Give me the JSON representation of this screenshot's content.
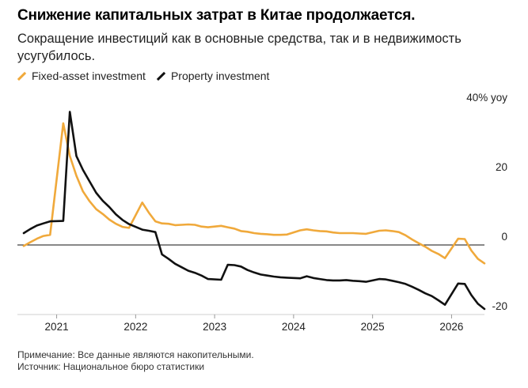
{
  "title": "Снижение капитальных затрат в Китае продолжается.",
  "subtitle": "Сокращение инвестиций как в основные средства, так и в недвижимость усугубилось.",
  "footer": {
    "note": "Примечание: Все данные являются накопительными.",
    "source": "Источник: Национальное бюро статистики"
  },
  "chart_data": {
    "type": "line",
    "title": "Снижение капитальных затрат в Китае продолжается.",
    "subtitle": "Сокращение инвестиций как в основные средства, так и в недвижимость усугубилось.",
    "ylabel": "",
    "y_unit_label": "40% yoy",
    "ylim": [
      -20,
      40
    ],
    "y_ticks": [
      40,
      20,
      0,
      -20
    ],
    "y_tick_labels": [
      "40% yoy",
      "20",
      "0",
      "-20"
    ],
    "x_ticks": [
      "2021",
      "2022",
      "2023",
      "2024",
      "2025",
      "2026"
    ],
    "grid": "horizontal zero line only",
    "legend": "top-left",
    "series": [
      {
        "name": "Fixed-asset investment",
        "color": "#f0a93b",
        "x": [
          "2020-08",
          "2020-09",
          "2020-10",
          "2020-11",
          "2020-12",
          "2021-02",
          "2021-03",
          "2021-04",
          "2021-05",
          "2021-06",
          "2021-07",
          "2021-08",
          "2021-09",
          "2021-10",
          "2021-11",
          "2021-12",
          "2022-02",
          "2022-03",
          "2022-04",
          "2022-05",
          "2022-06",
          "2022-07",
          "2022-08",
          "2022-09",
          "2022-10",
          "2022-11",
          "2022-12",
          "2023-02",
          "2023-03",
          "2023-04",
          "2023-05",
          "2023-06",
          "2023-07",
          "2023-08",
          "2023-09",
          "2023-10",
          "2023-11",
          "2023-12",
          "2024-02",
          "2024-03",
          "2024-04",
          "2024-05",
          "2024-06",
          "2024-07",
          "2024-08",
          "2024-09",
          "2024-10",
          "2024-11",
          "2024-12",
          "2025-02",
          "2025-03",
          "2025-04",
          "2025-05",
          "2025-06",
          "2025-07",
          "2025-08",
          "2025-09",
          "2025-10",
          "2025-11",
          "2025-12",
          "2026-02",
          "2026-03",
          "2026-04",
          "2026-05",
          "2026-06"
        ],
        "values": [
          -0.3,
          0.8,
          1.8,
          2.6,
          2.9,
          35.0,
          25.6,
          19.9,
          15.4,
          12.6,
          10.3,
          8.9,
          7.3,
          6.1,
          5.2,
          4.9,
          12.2,
          9.3,
          6.8,
          6.2,
          6.1,
          5.7,
          5.8,
          5.9,
          5.8,
          5.3,
          5.1,
          5.5,
          5.1,
          4.7,
          4.0,
          3.8,
          3.4,
          3.2,
          3.1,
          2.9,
          2.9,
          3.0,
          4.2,
          4.5,
          4.2,
          4.0,
          3.9,
          3.6,
          3.4,
          3.4,
          3.4,
          3.3,
          3.2,
          4.1,
          4.2,
          4.0,
          3.7,
          2.8,
          1.6,
          0.5,
          -0.5,
          -1.7,
          -2.6,
          -3.8,
          1.8,
          1.7,
          -1.6,
          -4.0,
          -5.3
        ]
      },
      {
        "name": "Property investment",
        "color": "#111111",
        "x": [
          "2020-08",
          "2020-09",
          "2020-10",
          "2020-11",
          "2020-12",
          "2021-02",
          "2021-03",
          "2021-04",
          "2021-05",
          "2021-06",
          "2021-07",
          "2021-08",
          "2021-09",
          "2021-10",
          "2021-11",
          "2021-12",
          "2022-02",
          "2022-03",
          "2022-04",
          "2022-05",
          "2022-06",
          "2022-07",
          "2022-08",
          "2022-09",
          "2022-10",
          "2022-11",
          "2022-12",
          "2023-02",
          "2023-03",
          "2023-04",
          "2023-05",
          "2023-06",
          "2023-07",
          "2023-08",
          "2023-09",
          "2023-10",
          "2023-11",
          "2023-12",
          "2024-02",
          "2024-03",
          "2024-04",
          "2024-05",
          "2024-06",
          "2024-07",
          "2024-08",
          "2024-09",
          "2024-10",
          "2024-11",
          "2024-12",
          "2025-02",
          "2025-03",
          "2025-04",
          "2025-05",
          "2025-06",
          "2025-07",
          "2025-08",
          "2025-09",
          "2025-10",
          "2025-11",
          "2025-12",
          "2026-02",
          "2026-03",
          "2026-04",
          "2026-05",
          "2026-06"
        ],
        "values": [
          3.4,
          4.6,
          5.6,
          6.2,
          6.8,
          6.9,
          38.3,
          25.6,
          21.6,
          18.3,
          15.0,
          12.7,
          10.9,
          8.8,
          7.2,
          6.0,
          4.4,
          4.1,
          3.7,
          -2.7,
          -4.0,
          -5.4,
          -6.4,
          -7.4,
          -8.0,
          -8.8,
          -9.8,
          -10.0,
          -5.7,
          -5.8,
          -6.2,
          -7.2,
          -7.9,
          -8.5,
          -8.8,
          -9.1,
          -9.3,
          -9.4,
          -9.6,
          -9.0,
          -9.5,
          -9.8,
          -10.1,
          -10.2,
          -10.2,
          -10.1,
          -10.3,
          -10.4,
          -10.6,
          -9.8,
          -9.9,
          -10.3,
          -10.7,
          -11.2,
          -12.0,
          -12.9,
          -13.9,
          -14.7,
          -15.9,
          -17.2,
          -11.1,
          -11.2,
          -14.4,
          -16.9,
          -18.4
        ]
      }
    ]
  }
}
